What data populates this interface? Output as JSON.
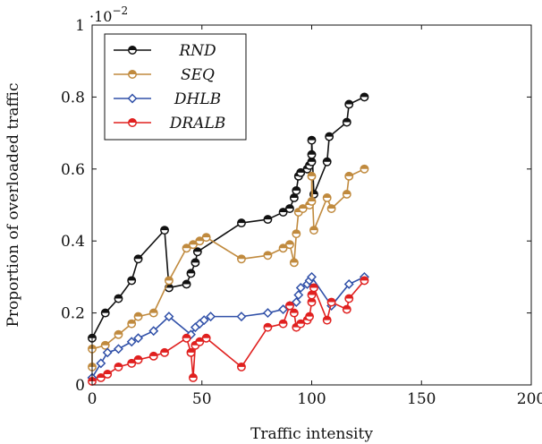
{
  "chart_data": {
    "type": "line",
    "title": "",
    "xlabel": "Traffic intensity",
    "ylabel": "Proportion of overloaded traffic",
    "y_multiplier": "·10",
    "y_multiplier_exp": "−2",
    "xlim": [
      0,
      200
    ],
    "ylim": [
      0,
      1
    ],
    "x_ticks": [
      "0",
      "50",
      "100",
      "150",
      "200"
    ],
    "y_ticks": [
      "0",
      "0.2",
      "0.4",
      "0.6",
      "0.8",
      "1"
    ],
    "x_tick_values": [
      0,
      50,
      100,
      150,
      200
    ],
    "y_tick_values": [
      0,
      0.2,
      0.4,
      0.6,
      0.8,
      1
    ],
    "grid": false,
    "legend_position": "top-left",
    "series": [
      {
        "name": "RND",
        "color": "#111111",
        "marker": "circle-half",
        "points": [
          [
            0,
            0.13
          ],
          [
            6,
            0.2
          ],
          [
            12,
            0.24
          ],
          [
            18,
            0.29
          ],
          [
            21,
            0.35
          ],
          [
            33,
            0.43
          ],
          [
            35,
            0.27
          ],
          [
            43,
            0.28
          ],
          [
            45,
            0.31
          ],
          [
            47,
            0.34
          ],
          [
            48,
            0.37
          ],
          [
            68,
            0.45
          ],
          [
            80,
            0.46
          ],
          [
            87,
            0.48
          ],
          [
            90,
            0.49
          ],
          [
            92,
            0.52
          ],
          [
            93,
            0.54
          ],
          [
            94,
            0.58
          ],
          [
            95,
            0.59
          ],
          [
            98,
            0.6
          ],
          [
            99,
            0.61
          ],
          [
            100,
            0.62
          ],
          [
            100,
            0.64
          ],
          [
            100,
            0.68
          ],
          [
            101,
            0.53
          ],
          [
            107,
            0.62
          ],
          [
            108,
            0.69
          ],
          [
            116,
            0.73
          ],
          [
            117,
            0.78
          ],
          [
            124,
            0.8
          ]
        ]
      },
      {
        "name": "SEQ",
        "color": "#c08a3e",
        "marker": "circle-half",
        "points": [
          [
            0,
            0.05
          ],
          [
            0,
            0.1
          ],
          [
            6,
            0.11
          ],
          [
            12,
            0.14
          ],
          [
            18,
            0.17
          ],
          [
            21,
            0.19
          ],
          [
            28,
            0.2
          ],
          [
            35,
            0.29
          ],
          [
            43,
            0.38
          ],
          [
            46,
            0.39
          ],
          [
            49,
            0.4
          ],
          [
            52,
            0.41
          ],
          [
            68,
            0.35
          ],
          [
            80,
            0.36
          ],
          [
            87,
            0.38
          ],
          [
            90,
            0.39
          ],
          [
            92,
            0.34
          ],
          [
            93,
            0.42
          ],
          [
            94,
            0.48
          ],
          [
            96,
            0.49
          ],
          [
            99,
            0.5
          ],
          [
            100,
            0.51
          ],
          [
            100,
            0.58
          ],
          [
            101,
            0.43
          ],
          [
            107,
            0.52
          ],
          [
            109,
            0.49
          ],
          [
            116,
            0.53
          ],
          [
            117,
            0.58
          ],
          [
            124,
            0.6
          ]
        ]
      },
      {
        "name": "DHLB",
        "color": "#3050a8",
        "marker": "diamond",
        "points": [
          [
            0,
            0.02
          ],
          [
            4,
            0.06
          ],
          [
            7,
            0.09
          ],
          [
            12,
            0.1
          ],
          [
            18,
            0.12
          ],
          [
            21,
            0.13
          ],
          [
            28,
            0.15
          ],
          [
            35,
            0.19
          ],
          [
            45,
            0.14
          ],
          [
            47,
            0.16
          ],
          [
            49,
            0.17
          ],
          [
            51,
            0.18
          ],
          [
            54,
            0.19
          ],
          [
            68,
            0.19
          ],
          [
            80,
            0.2
          ],
          [
            87,
            0.21
          ],
          [
            90,
            0.22
          ],
          [
            93,
            0.23
          ],
          [
            94,
            0.25
          ],
          [
            95,
            0.27
          ],
          [
            98,
            0.28
          ],
          [
            99,
            0.29
          ],
          [
            100,
            0.3
          ],
          [
            109,
            0.22
          ],
          [
            117,
            0.28
          ],
          [
            124,
            0.3
          ]
        ]
      },
      {
        "name": "DRALB",
        "color": "#e0201f",
        "marker": "circle-half",
        "points": [
          [
            0,
            0.01
          ],
          [
            4,
            0.02
          ],
          [
            7,
            0.03
          ],
          [
            12,
            0.05
          ],
          [
            18,
            0.06
          ],
          [
            21,
            0.07
          ],
          [
            28,
            0.08
          ],
          [
            33,
            0.09
          ],
          [
            43,
            0.13
          ],
          [
            45,
            0.09
          ],
          [
            46,
            0.02
          ],
          [
            47,
            0.11
          ],
          [
            49,
            0.12
          ],
          [
            52,
            0.13
          ],
          [
            68,
            0.05
          ],
          [
            80,
            0.16
          ],
          [
            87,
            0.17
          ],
          [
            90,
            0.22
          ],
          [
            92,
            0.2
          ],
          [
            93,
            0.16
          ],
          [
            95,
            0.17
          ],
          [
            98,
            0.18
          ],
          [
            99,
            0.19
          ],
          [
            100,
            0.23
          ],
          [
            100,
            0.25
          ],
          [
            101,
            0.27
          ],
          [
            107,
            0.18
          ],
          [
            109,
            0.23
          ],
          [
            116,
            0.21
          ],
          [
            117,
            0.24
          ],
          [
            124,
            0.29
          ]
        ]
      }
    ]
  }
}
